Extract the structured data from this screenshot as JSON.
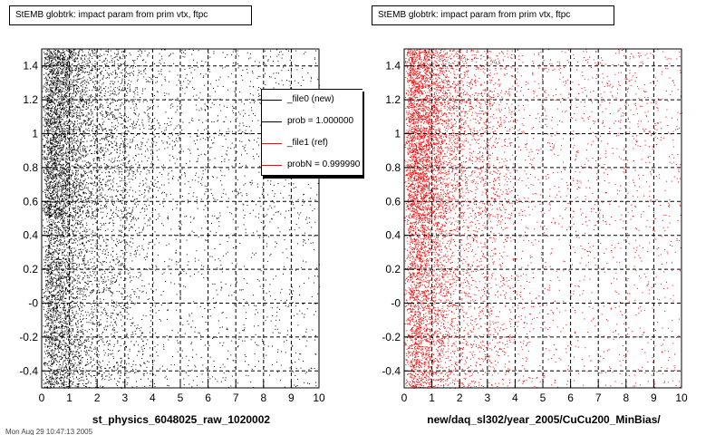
{
  "chart_data": [
    {
      "type": "scatter",
      "title": "StEMB globtrk: impact param from prim vtx, ftpc",
      "xlabel": "st_physics_6048025_raw_1020002",
      "ylabel": "",
      "xlim": [
        0,
        10
      ],
      "ylim": [
        -0.5,
        1.5
      ],
      "xticks": [
        "0",
        "1",
        "2",
        "3",
        "4",
        "5",
        "6",
        "7",
        "8",
        "9",
        "10"
      ],
      "yticks": [
        "-0.4",
        "-0.2",
        "-0",
        "0.2",
        "0.4",
        "0.6",
        "0.8",
        "1",
        "1.2",
        "1.4"
      ],
      "grid": true,
      "color": "#000000",
      "legend_position": "top-right",
      "legend": [
        {
          "label": "_file0 (new)",
          "color": "#000000"
        },
        {
          "label": "prob = 1.000000",
          "color": "#000000"
        },
        {
          "label": "_file1 (ref)",
          "color": "#ff0000"
        },
        {
          "label": "probN = 0.999990",
          "color": "#ff0000"
        }
      ]
    },
    {
      "type": "scatter",
      "title": "StEMB globtrk: impact param from prim vtx, ftpc",
      "xlabel": "new/daq_sl302/year_2005/CuCu200_MinBias/",
      "ylabel": "",
      "xlim": [
        0,
        10
      ],
      "ylim": [
        -0.5,
        1.5
      ],
      "xticks": [
        "0",
        "1",
        "2",
        "3",
        "4",
        "5",
        "6",
        "7",
        "8",
        "9",
        "10"
      ],
      "yticks": [
        "-0.4",
        "-0.2",
        "-0",
        "0.2",
        "0.4",
        "0.6",
        "0.8",
        "1",
        "1.2",
        "1.4"
      ],
      "grid": true,
      "color": "#ff0000"
    }
  ],
  "footer": "Mon Aug 29 10:47:13 2005"
}
